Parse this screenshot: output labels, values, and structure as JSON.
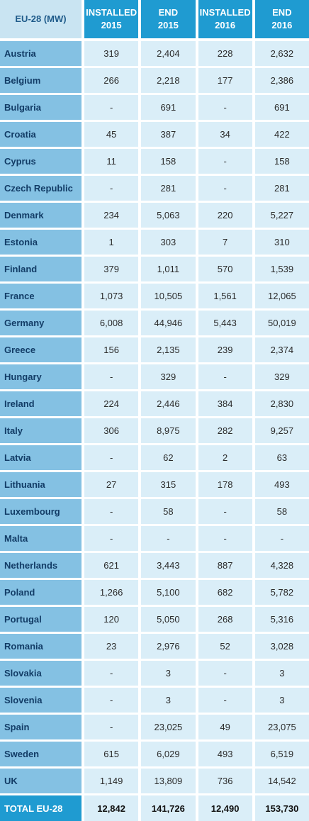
{
  "header": {
    "region": "EU-28 (MW)",
    "columns": [
      {
        "line1": "INSTALLED",
        "line2": "2015"
      },
      {
        "line1": "END",
        "line2": "2015"
      },
      {
        "line1": "INSTALLED",
        "line2": "2016"
      },
      {
        "line1": "END",
        "line2": "2016"
      }
    ]
  },
  "rows": [
    {
      "country": "Austria",
      "installed_2015": "319",
      "end_2015": "2,404",
      "installed_2016": "228",
      "end_2016": "2,632"
    },
    {
      "country": "Belgium",
      "installed_2015": "266",
      "end_2015": "2,218",
      "installed_2016": "177",
      "end_2016": "2,386"
    },
    {
      "country": "Bulgaria",
      "installed_2015": "-",
      "end_2015": "691",
      "installed_2016": "-",
      "end_2016": "691"
    },
    {
      "country": "Croatia",
      "installed_2015": "45",
      "end_2015": "387",
      "installed_2016": "34",
      "end_2016": "422"
    },
    {
      "country": "Cyprus",
      "installed_2015": "11",
      "end_2015": "158",
      "installed_2016": "-",
      "end_2016": "158"
    },
    {
      "country": "Czech Republic",
      "installed_2015": "-",
      "end_2015": "281",
      "installed_2016": "-",
      "end_2016": "281"
    },
    {
      "country": "Denmark",
      "installed_2015": "234",
      "end_2015": "5,063",
      "installed_2016": "220",
      "end_2016": "5,227"
    },
    {
      "country": "Estonia",
      "installed_2015": "1",
      "end_2015": "303",
      "installed_2016": "7",
      "end_2016": "310"
    },
    {
      "country": "Finland",
      "installed_2015": "379",
      "end_2015": "1,011",
      "installed_2016": "570",
      "end_2016": "1,539"
    },
    {
      "country": "France",
      "installed_2015": "1,073",
      "end_2015": "10,505",
      "installed_2016": "1,561",
      "end_2016": "12,065"
    },
    {
      "country": "Germany",
      "installed_2015": "6,008",
      "end_2015": "44,946",
      "installed_2016": "5,443",
      "end_2016": "50,019"
    },
    {
      "country": "Greece",
      "installed_2015": "156",
      "end_2015": "2,135",
      "installed_2016": "239",
      "end_2016": "2,374"
    },
    {
      "country": "Hungary",
      "installed_2015": "-",
      "end_2015": "329",
      "installed_2016": "-",
      "end_2016": "329"
    },
    {
      "country": "Ireland",
      "installed_2015": "224",
      "end_2015": "2,446",
      "installed_2016": "384",
      "end_2016": "2,830"
    },
    {
      "country": "Italy",
      "installed_2015": "306",
      "end_2015": "8,975",
      "installed_2016": "282",
      "end_2016": "9,257"
    },
    {
      "country": "Latvia",
      "installed_2015": "-",
      "end_2015": "62",
      "installed_2016": "2",
      "end_2016": "63"
    },
    {
      "country": "Lithuania",
      "installed_2015": "27",
      "end_2015": "315",
      "installed_2016": "178",
      "end_2016": "493"
    },
    {
      "country": "Luxembourg",
      "installed_2015": "-",
      "end_2015": "58",
      "installed_2016": "-",
      "end_2016": "58"
    },
    {
      "country": "Malta",
      "installed_2015": "-",
      "end_2015": "-",
      "installed_2016": "-",
      "end_2016": "-"
    },
    {
      "country": "Netherlands",
      "installed_2015": "621",
      "end_2015": "3,443",
      "installed_2016": "887",
      "end_2016": "4,328"
    },
    {
      "country": "Poland",
      "installed_2015": "1,266",
      "end_2015": "5,100",
      "installed_2016": "682",
      "end_2016": "5,782"
    },
    {
      "country": "Portugal",
      "installed_2015": "120",
      "end_2015": "5,050",
      "installed_2016": "268",
      "end_2016": "5,316"
    },
    {
      "country": "Romania",
      "installed_2015": "23",
      "end_2015": "2,976",
      "installed_2016": "52",
      "end_2016": "3,028"
    },
    {
      "country": "Slovakia",
      "installed_2015": "-",
      "end_2015": "3",
      "installed_2016": "-",
      "end_2016": "3"
    },
    {
      "country": "Slovenia",
      "installed_2015": "-",
      "end_2015": "3",
      "installed_2016": "-",
      "end_2016": "3"
    },
    {
      "country": "Spain",
      "installed_2015": "-",
      "end_2015": "23,025",
      "installed_2016": "49",
      "end_2016": "23,075"
    },
    {
      "country": "Sweden",
      "installed_2015": "615",
      "end_2015": "6,029",
      "installed_2016": "493",
      "end_2016": "6,519"
    },
    {
      "country": "UK",
      "installed_2015": "1,149",
      "end_2015": "13,809",
      "installed_2016": "736",
      "end_2016": "14,542"
    }
  ],
  "total": {
    "label": "TOTAL EU-28",
    "installed_2015": "12,842",
    "end_2015": "141,726",
    "installed_2016": "12,490",
    "end_2016": "153,730"
  },
  "colors": {
    "header_blue": "#1f9bd1",
    "row_label_blue": "#84c1e3",
    "cell_light": "#daeef8",
    "corner_header": "#c9e4f2"
  }
}
